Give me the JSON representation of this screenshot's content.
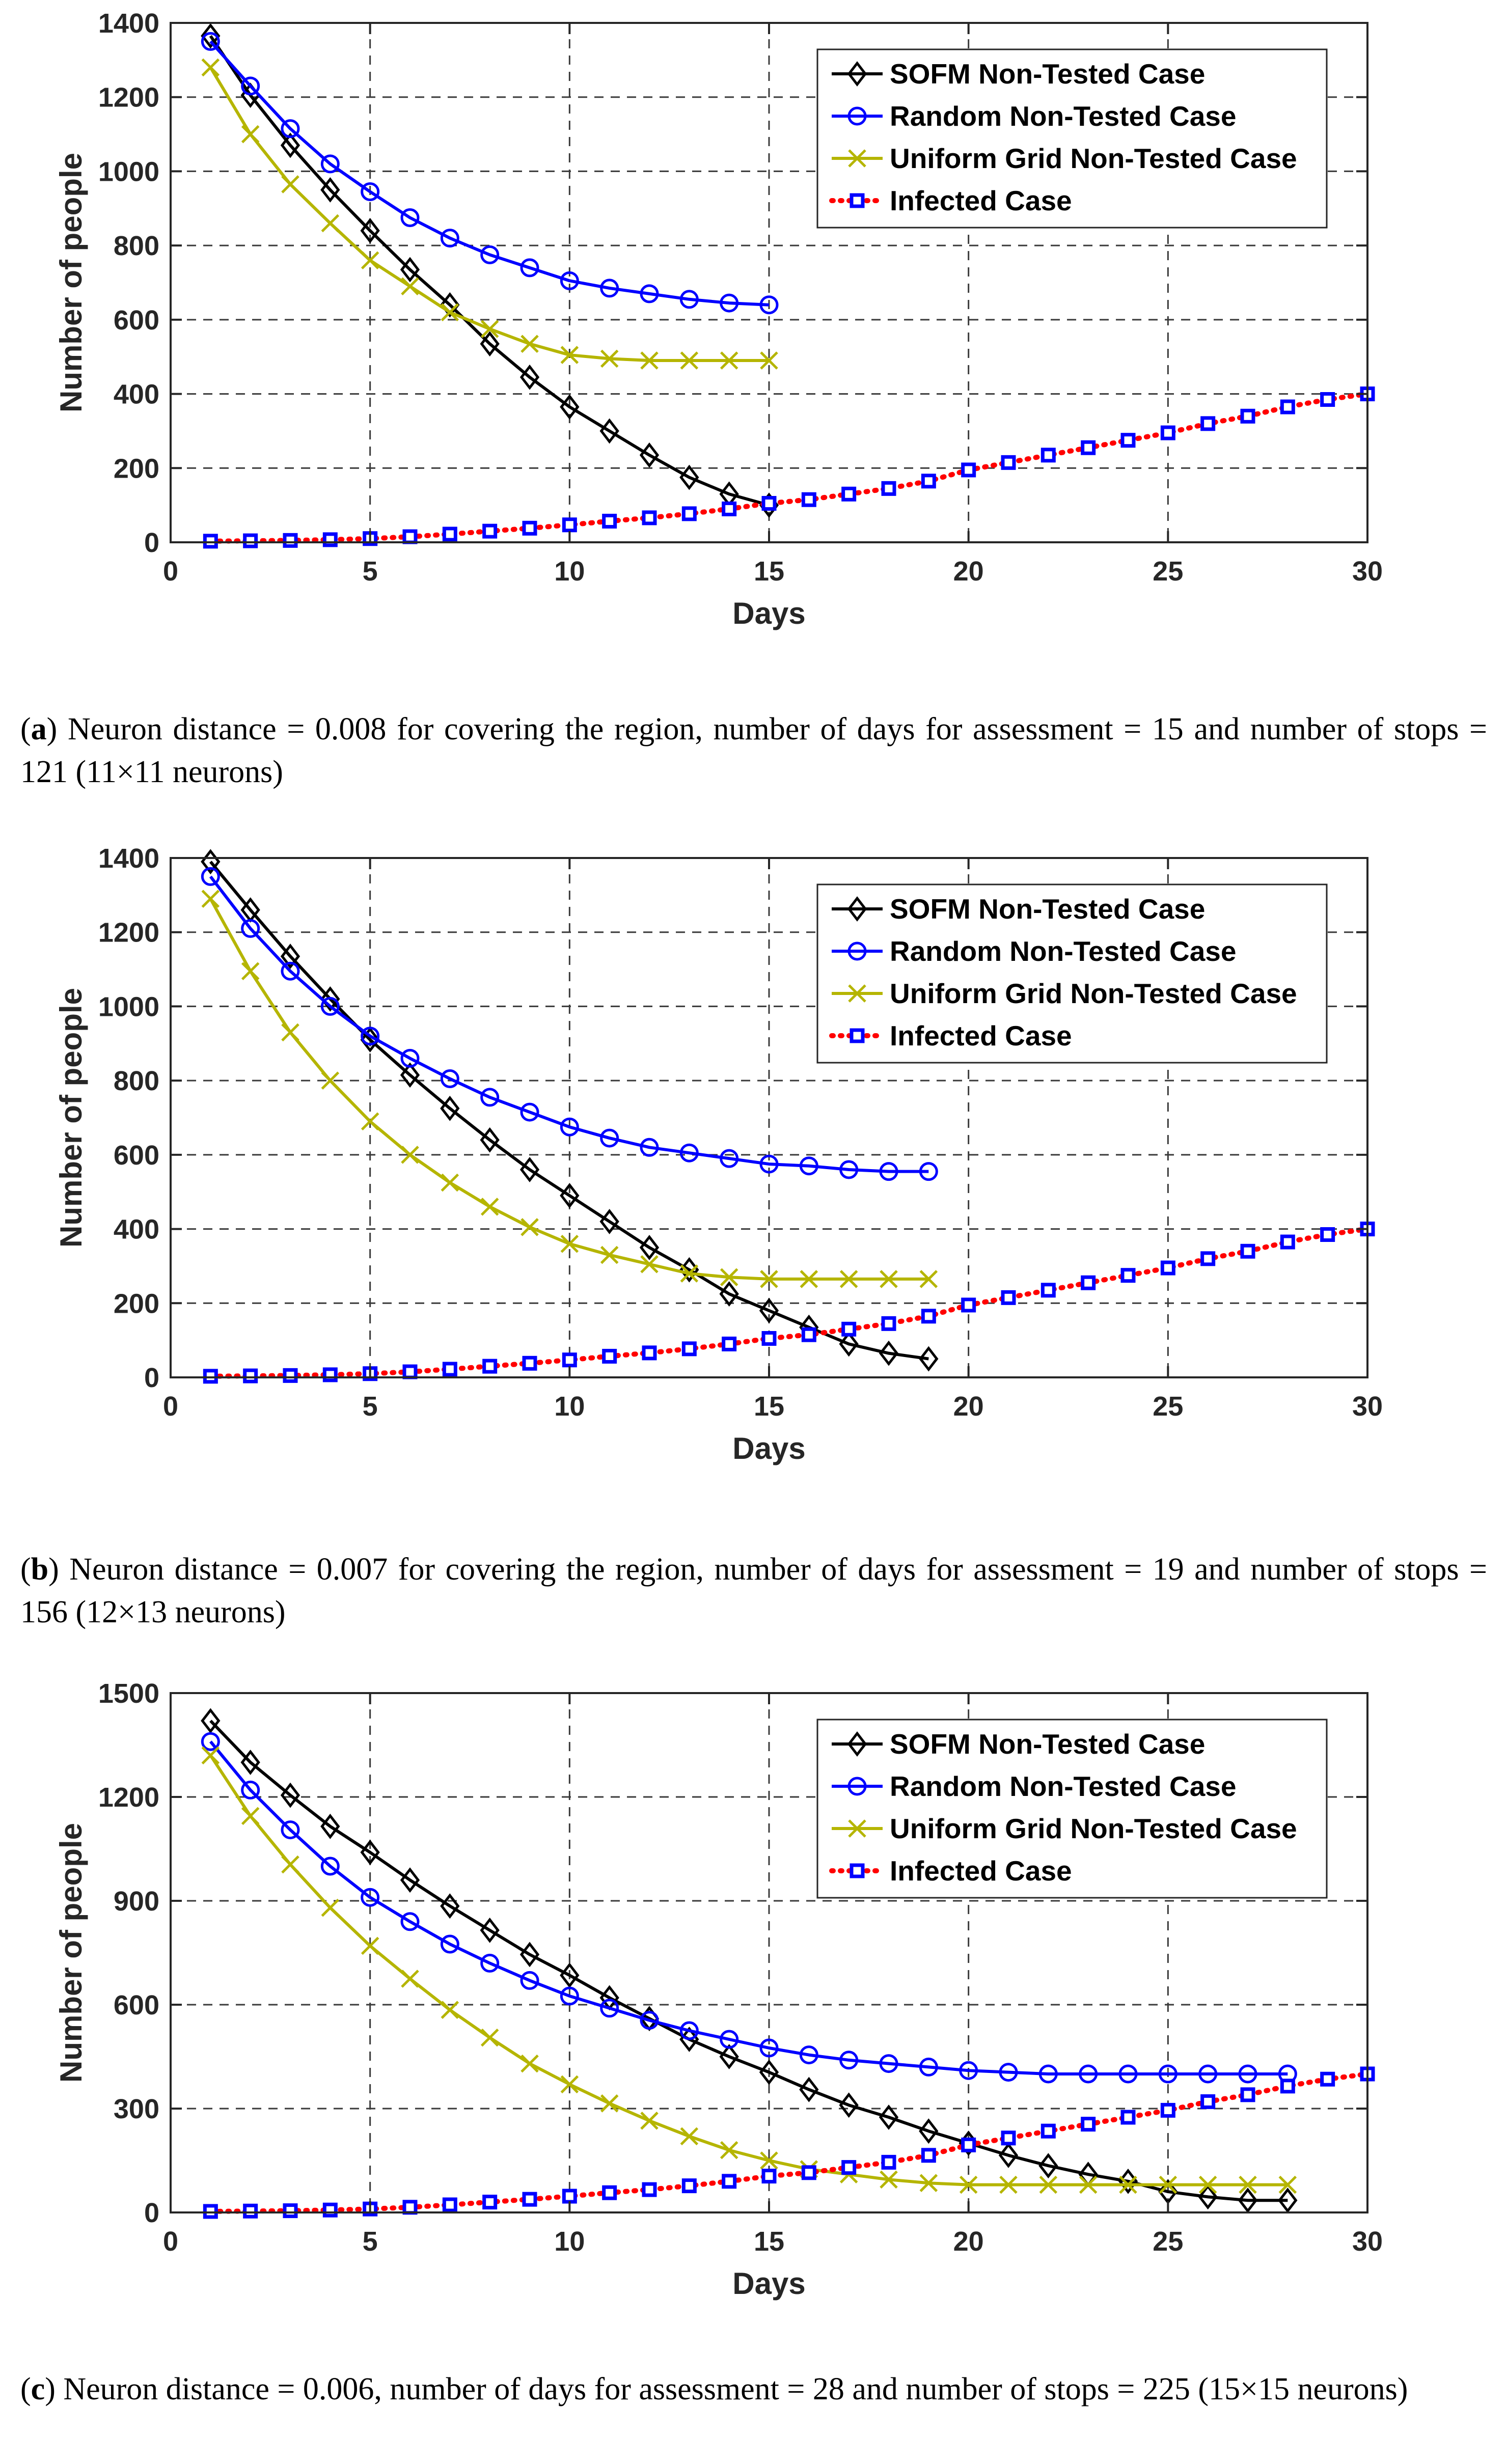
{
  "chart_data": [
    {
      "type": "line",
      "caption_tag": "a",
      "caption": "Neuron distance = 0.008 for covering the region, number of days for assessment = 15 and number of stops = 121 (11×11 neurons)",
      "xlabel": "Days",
      "ylabel": "Number of people",
      "xlim": [
        0,
        30
      ],
      "ylim": [
        0,
        1400
      ],
      "xticks": [
        0,
        5,
        10,
        15,
        20,
        25,
        30
      ],
      "yticks": [
        0,
        200,
        400,
        600,
        800,
        1000,
        1200,
        1400
      ],
      "grid": true,
      "legend_position": "top-right",
      "series": [
        {
          "name": "SOFM Non-Tested Case",
          "color": "#000000",
          "marker": "diamond",
          "linestyle": "solid",
          "x": [
            1,
            2,
            3,
            4,
            5,
            6,
            7,
            8,
            9,
            10,
            11,
            12,
            13,
            14,
            15
          ],
          "y": [
            1365,
            1205,
            1070,
            950,
            840,
            735,
            640,
            535,
            445,
            365,
            300,
            235,
            175,
            130,
            100
          ]
        },
        {
          "name": "Random Non-Tested Case",
          "color": "#0000ff",
          "marker": "circle",
          "linestyle": "solid",
          "x": [
            1,
            2,
            3,
            4,
            5,
            6,
            7,
            8,
            9,
            10,
            11,
            12,
            13,
            14,
            15
          ],
          "y": [
            1350,
            1230,
            1115,
            1020,
            945,
            875,
            820,
            775,
            740,
            705,
            685,
            670,
            655,
            645,
            640
          ]
        },
        {
          "name": "Uniform Grid Non-Tested Case",
          "color": "#b5b500",
          "marker": "x",
          "linestyle": "solid",
          "x": [
            1,
            2,
            3,
            4,
            5,
            6,
            7,
            8,
            9,
            10,
            11,
            12,
            13,
            14,
            15
          ],
          "y": [
            1280,
            1100,
            965,
            860,
            760,
            690,
            620,
            575,
            535,
            505,
            495,
            490,
            490,
            490,
            490
          ]
        },
        {
          "name": "Infected Case",
          "color": "#ff0000",
          "marker": "square",
          "markercolor": "#0000ff",
          "linestyle": "dotted",
          "x": [
            1,
            2,
            3,
            4,
            5,
            6,
            7,
            8,
            9,
            10,
            11,
            12,
            13,
            14,
            15,
            16,
            17,
            18,
            19,
            20,
            21,
            22,
            23,
            24,
            25,
            26,
            27,
            28,
            29,
            30
          ],
          "y": [
            3,
            4,
            5,
            7,
            10,
            15,
            22,
            30,
            38,
            47,
            57,
            66,
            77,
            90,
            105,
            115,
            130,
            145,
            165,
            195,
            215,
            235,
            255,
            275,
            295,
            320,
            340,
            365,
            385,
            400
          ]
        }
      ]
    },
    {
      "type": "line",
      "caption_tag": "b",
      "caption": "Neuron distance = 0.007 for covering the region, number of days for assessment = 19 and number of stops = 156 (12×13 neurons)",
      "xlabel": "Days",
      "ylabel": "Number of people",
      "xlim": [
        0,
        30
      ],
      "ylim": [
        0,
        1400
      ],
      "xticks": [
        0,
        5,
        10,
        15,
        20,
        25,
        30
      ],
      "yticks": [
        0,
        200,
        400,
        600,
        800,
        1000,
        1200,
        1400
      ],
      "grid": true,
      "legend_position": "top-right",
      "series": [
        {
          "name": "SOFM Non-Tested Case",
          "color": "#000000",
          "marker": "diamond",
          "linestyle": "solid",
          "x": [
            1,
            2,
            3,
            4,
            5,
            6,
            7,
            8,
            9,
            10,
            11,
            12,
            13,
            14,
            15,
            16,
            17,
            18,
            19
          ],
          "y": [
            1390,
            1260,
            1135,
            1020,
            910,
            815,
            725,
            640,
            560,
            490,
            420,
            350,
            290,
            225,
            180,
            135,
            90,
            65,
            50
          ]
        },
        {
          "name": "Random Non-Tested Case",
          "color": "#0000ff",
          "marker": "circle",
          "linestyle": "solid",
          "x": [
            1,
            2,
            3,
            4,
            5,
            6,
            7,
            8,
            9,
            10,
            11,
            12,
            13,
            14,
            15,
            16,
            17,
            18,
            19
          ],
          "y": [
            1350,
            1210,
            1095,
            1000,
            920,
            860,
            805,
            755,
            715,
            675,
            645,
            620,
            605,
            590,
            575,
            570,
            560,
            555,
            555
          ]
        },
        {
          "name": "Uniform Grid Non-Tested Case",
          "color": "#b5b500",
          "marker": "x",
          "linestyle": "solid",
          "x": [
            1,
            2,
            3,
            4,
            5,
            6,
            7,
            8,
            9,
            10,
            11,
            12,
            13,
            14,
            15,
            16,
            17,
            18,
            19
          ],
          "y": [
            1290,
            1095,
            930,
            800,
            690,
            600,
            525,
            460,
            405,
            360,
            330,
            305,
            280,
            270,
            265,
            265,
            265,
            265,
            265
          ]
        },
        {
          "name": "Infected Case",
          "color": "#ff0000",
          "marker": "square",
          "markercolor": "#0000ff",
          "linestyle": "dotted",
          "x": [
            1,
            2,
            3,
            4,
            5,
            6,
            7,
            8,
            9,
            10,
            11,
            12,
            13,
            14,
            15,
            16,
            17,
            18,
            19,
            20,
            21,
            22,
            23,
            24,
            25,
            26,
            27,
            28,
            29,
            30
          ],
          "y": [
            3,
            4,
            5,
            7,
            10,
            15,
            22,
            30,
            38,
            47,
            57,
            66,
            77,
            90,
            105,
            115,
            130,
            145,
            165,
            195,
            215,
            235,
            255,
            275,
            295,
            320,
            340,
            365,
            385,
            400
          ]
        }
      ]
    },
    {
      "type": "line",
      "caption_tag": "c",
      "caption": "Neuron distance = 0.006, number of days for assessment = 28 and number of stops = 225 (15×15 neurons)",
      "xlabel": "Days",
      "ylabel": "Number of people",
      "xlim": [
        0,
        30
      ],
      "ylim": [
        0,
        1500
      ],
      "xticks": [
        0,
        5,
        10,
        15,
        20,
        25,
        30
      ],
      "yticks": [
        0,
        300,
        600,
        900,
        1200,
        1500
      ],
      "grid": true,
      "legend_position": "top-right",
      "series": [
        {
          "name": "SOFM Non-Tested Case",
          "color": "#000000",
          "marker": "diamond",
          "linestyle": "solid",
          "x": [
            1,
            2,
            3,
            4,
            5,
            6,
            7,
            8,
            9,
            10,
            11,
            12,
            13,
            14,
            15,
            16,
            17,
            18,
            19,
            20,
            21,
            22,
            23,
            24,
            25,
            26,
            27,
            28
          ],
          "y": [
            1420,
            1300,
            1205,
            1115,
            1040,
            960,
            885,
            815,
            745,
            685,
            620,
            560,
            500,
            450,
            405,
            355,
            310,
            275,
            235,
            200,
            165,
            135,
            110,
            90,
            60,
            45,
            35,
            35
          ]
        },
        {
          "name": "Random Non-Tested Case",
          "color": "#0000ff",
          "marker": "circle",
          "linestyle": "solid",
          "x": [
            1,
            2,
            3,
            4,
            5,
            6,
            7,
            8,
            9,
            10,
            11,
            12,
            13,
            14,
            15,
            16,
            17,
            18,
            19,
            20,
            21,
            22,
            23,
            24,
            25,
            26,
            27,
            28
          ],
          "y": [
            1360,
            1220,
            1105,
            1000,
            910,
            840,
            775,
            720,
            670,
            625,
            590,
            555,
            525,
            500,
            475,
            455,
            440,
            430,
            420,
            410,
            405,
            400,
            400,
            400,
            400,
            400,
            400,
            400
          ]
        },
        {
          "name": "Uniform Grid Non-Tested Case",
          "color": "#b5b500",
          "marker": "x",
          "linestyle": "solid",
          "x": [
            1,
            2,
            3,
            4,
            5,
            6,
            7,
            8,
            9,
            10,
            11,
            12,
            13,
            14,
            15,
            16,
            17,
            18,
            19,
            20,
            21,
            22,
            23,
            24,
            25,
            26,
            27,
            28
          ],
          "y": [
            1320,
            1145,
            1005,
            880,
            770,
            675,
            585,
            505,
            430,
            370,
            315,
            265,
            220,
            180,
            150,
            125,
            110,
            95,
            85,
            80,
            80,
            80,
            80,
            80,
            80,
            80,
            80,
            80
          ]
        },
        {
          "name": "Infected Case",
          "color": "#ff0000",
          "marker": "square",
          "markercolor": "#0000ff",
          "linestyle": "dotted",
          "x": [
            1,
            2,
            3,
            4,
            5,
            6,
            7,
            8,
            9,
            10,
            11,
            12,
            13,
            14,
            15,
            16,
            17,
            18,
            19,
            20,
            21,
            22,
            23,
            24,
            25,
            26,
            27,
            28,
            29,
            30
          ],
          "y": [
            3,
            4,
            5,
            7,
            10,
            15,
            22,
            30,
            38,
            47,
            57,
            66,
            77,
            90,
            105,
            115,
            130,
            145,
            165,
            195,
            215,
            235,
            255,
            275,
            295,
            320,
            340,
            365,
            385,
            400
          ]
        }
      ]
    }
  ]
}
